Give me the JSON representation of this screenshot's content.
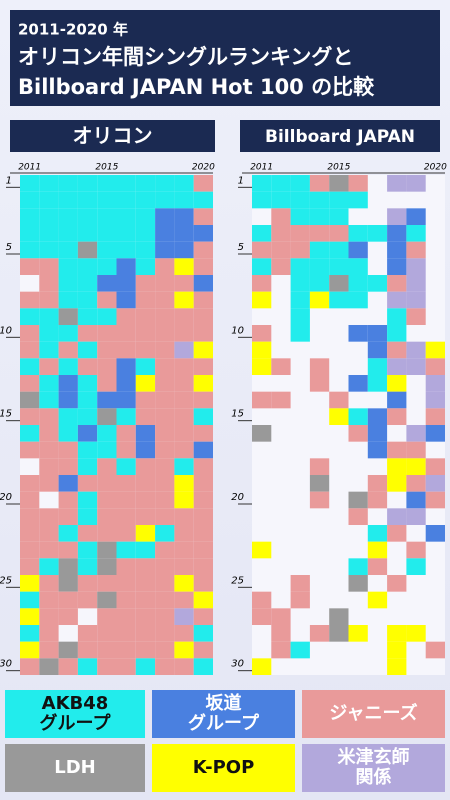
{
  "header": {
    "subtitle": "2011-2020 年",
    "title_lines": [
      "オリコン年間シングルランキングと",
      "Billboard JAPAN Hot 100 の比較"
    ]
  },
  "legend": [
    {
      "label_lines": [
        "AKB48",
        "グループ"
      ],
      "color": "#22ecec"
    },
    {
      "label_lines": [
        "坂道",
        "グループ"
      ],
      "color": "#4a80e0"
    },
    {
      "label_lines": [
        "ジャニーズ"
      ],
      "color": "#e99a9a"
    },
    {
      "label_lines": [
        "LDH"
      ],
      "color": "#999999"
    },
    {
      "label_lines": [
        "K-POP"
      ],
      "color": "#ffff00"
    },
    {
      "label_lines": [
        "米津玄師",
        "関係"
      ],
      "color": "#b2a8dc"
    }
  ],
  "xlim": [
    2011,
    2020
  ],
  "xticks": [
    2011,
    2015,
    2020
  ],
  "ylim": [
    1,
    30
  ],
  "yticks": [
    1,
    5,
    10,
    15,
    20,
    25,
    30
  ],
  "panels": [
    {
      "title": "オリコン",
      "grid": [
        [
          0,
          0,
          0,
          0,
          0,
          0,
          0,
          0,
          0,
          2
        ],
        [
          0,
          0,
          0,
          0,
          0,
          0,
          0,
          0,
          0,
          0
        ],
        [
          0,
          0,
          0,
          0,
          0,
          0,
          0,
          1,
          1,
          2
        ],
        [
          0,
          0,
          0,
          0,
          0,
          0,
          0,
          1,
          1,
          1
        ],
        [
          0,
          0,
          0,
          3,
          0,
          0,
          0,
          1,
          1,
          2
        ],
        [
          2,
          2,
          0,
          0,
          0,
          1,
          0,
          2,
          4,
          2
        ],
        [
          null,
          2,
          0,
          0,
          1,
          1,
          2,
          2,
          2,
          1
        ],
        [
          2,
          2,
          0,
          0,
          2,
          1,
          2,
          2,
          4,
          2
        ],
        [
          0,
          0,
          3,
          0,
          0,
          2,
          2,
          2,
          2,
          2
        ],
        [
          2,
          0,
          0,
          2,
          2,
          2,
          2,
          2,
          2,
          2
        ],
        [
          2,
          0,
          2,
          0,
          2,
          2,
          2,
          2,
          5,
          4
        ],
        [
          0,
          2,
          0,
          2,
          2,
          1,
          0,
          2,
          2,
          2
        ],
        [
          2,
          0,
          1,
          0,
          2,
          1,
          4,
          2,
          2,
          4
        ],
        [
          3,
          0,
          1,
          0,
          1,
          1,
          2,
          2,
          2,
          2
        ],
        [
          2,
          2,
          0,
          0,
          3,
          0,
          2,
          2,
          2,
          0
        ],
        [
          0,
          2,
          0,
          1,
          0,
          2,
          1,
          2,
          2,
          2
        ],
        [
          2,
          2,
          2,
          0,
          0,
          2,
          1,
          2,
          2,
          1
        ],
        [
          null,
          2,
          2,
          0,
          2,
          0,
          2,
          2,
          0,
          2
        ],
        [
          2,
          2,
          1,
          2,
          2,
          2,
          2,
          2,
          4,
          2
        ],
        [
          2,
          null,
          2,
          0,
          2,
          2,
          2,
          2,
          4,
          2
        ],
        [
          2,
          2,
          2,
          0,
          2,
          2,
          2,
          2,
          2,
          2
        ],
        [
          2,
          2,
          0,
          2,
          2,
          2,
          4,
          0,
          2,
          2
        ],
        [
          2,
          2,
          2,
          0,
          3,
          0,
          0,
          2,
          2,
          2
        ],
        [
          2,
          0,
          3,
          0,
          3,
          2,
          2,
          2,
          2,
          2
        ],
        [
          4,
          2,
          3,
          2,
          2,
          2,
          2,
          2,
          4,
          2
        ],
        [
          0,
          2,
          2,
          2,
          3,
          2,
          2,
          2,
          2,
          4
        ],
        [
          4,
          2,
          2,
          null,
          2,
          2,
          2,
          2,
          5,
          2
        ],
        [
          0,
          2,
          null,
          2,
          2,
          2,
          2,
          2,
          2,
          0
        ],
        [
          4,
          2,
          3,
          2,
          2,
          2,
          2,
          2,
          4,
          2
        ],
        [
          2,
          3,
          2,
          0,
          2,
          2,
          0,
          2,
          2,
          0
        ]
      ]
    },
    {
      "title": "Billboard JAPAN",
      "grid": [
        [
          0,
          0,
          0,
          2,
          3,
          2,
          null,
          5,
          5,
          null
        ],
        [
          0,
          0,
          0,
          0,
          0,
          0,
          null,
          null,
          null,
          null
        ],
        [
          null,
          2,
          0,
          0,
          0,
          null,
          null,
          5,
          1,
          null
        ],
        [
          0,
          2,
          2,
          2,
          2,
          0,
          0,
          1,
          0,
          null
        ],
        [
          2,
          2,
          2,
          0,
          0,
          1,
          null,
          1,
          2,
          null
        ],
        [
          0,
          2,
          0,
          0,
          0,
          0,
          null,
          1,
          5,
          null
        ],
        [
          2,
          null,
          0,
          0,
          3,
          0,
          0,
          2,
          5,
          null
        ],
        [
          4,
          null,
          0,
          4,
          0,
          0,
          null,
          5,
          5,
          null
        ],
        [
          null,
          null,
          0,
          null,
          null,
          null,
          null,
          0,
          2,
          null
        ],
        [
          2,
          null,
          0,
          null,
          null,
          1,
          1,
          0,
          null,
          null
        ],
        [
          4,
          null,
          null,
          null,
          null,
          null,
          1,
          2,
          5,
          4
        ],
        [
          4,
          2,
          null,
          2,
          null,
          null,
          0,
          5,
          5,
          2
        ],
        [
          null,
          null,
          null,
          2,
          null,
          1,
          0,
          4,
          null,
          5
        ],
        [
          2,
          2,
          null,
          null,
          2,
          null,
          null,
          1,
          null,
          5
        ],
        [
          null,
          null,
          null,
          null,
          4,
          0,
          1,
          2,
          null,
          2
        ],
        [
          3,
          null,
          null,
          null,
          null,
          2,
          1,
          null,
          5,
          1
        ],
        [
          null,
          null,
          null,
          null,
          null,
          null,
          1,
          2,
          2,
          null
        ],
        [
          null,
          null,
          null,
          2,
          null,
          null,
          null,
          4,
          4,
          2
        ],
        [
          null,
          null,
          null,
          3,
          null,
          null,
          2,
          4,
          2,
          5
        ],
        [
          null,
          null,
          null,
          2,
          null,
          3,
          2,
          null,
          1,
          2
        ],
        [
          null,
          null,
          null,
          null,
          null,
          2,
          null,
          5,
          5,
          null
        ],
        [
          null,
          null,
          null,
          null,
          null,
          null,
          0,
          2,
          null,
          1
        ],
        [
          4,
          null,
          null,
          null,
          null,
          null,
          4,
          null,
          2,
          null
        ],
        [
          null,
          null,
          null,
          null,
          null,
          0,
          2,
          null,
          0,
          null
        ],
        [
          null,
          null,
          2,
          null,
          null,
          3,
          null,
          2,
          null,
          null
        ],
        [
          2,
          null,
          2,
          null,
          null,
          null,
          4,
          null,
          null,
          null
        ],
        [
          2,
          2,
          null,
          null,
          3,
          null,
          null,
          null,
          null,
          null
        ],
        [
          null,
          2,
          null,
          2,
          3,
          4,
          null,
          4,
          4,
          null
        ],
        [
          null,
          2,
          0,
          null,
          null,
          null,
          null,
          4,
          null,
          2
        ],
        [
          4,
          null,
          null,
          null,
          null,
          null,
          null,
          4,
          null,
          null
        ]
      ]
    }
  ]
}
